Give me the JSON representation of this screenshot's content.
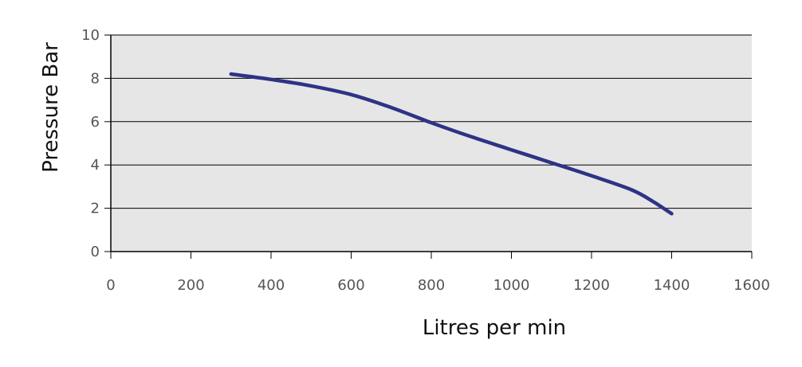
{
  "chart_data": {
    "type": "line",
    "title": "",
    "xlabel": "Litres per min",
    "ylabel": "Pressure Bar",
    "xlim": [
      0,
      1600
    ],
    "ylim": [
      0,
      10
    ],
    "x_ticks": [
      0,
      200,
      400,
      600,
      800,
      1000,
      1200,
      1400,
      1600
    ],
    "y_ticks": [
      0,
      2,
      4,
      6,
      8,
      10
    ],
    "grid": "horizontal",
    "legend": "none",
    "colors": {
      "plot_background": "#e6e6e6",
      "line": "#2e3386",
      "gridline": "#000000",
      "axis": "#000000"
    },
    "series": [
      {
        "x": [
          300,
          400,
          500,
          600,
          700,
          800,
          900,
          1000,
          1100,
          1200,
          1300,
          1350,
          1400
        ],
        "y": [
          8.2,
          7.95,
          7.65,
          7.25,
          6.65,
          5.95,
          5.3,
          4.7,
          4.1,
          3.5,
          2.85,
          2.35,
          1.75
        ]
      }
    ]
  }
}
